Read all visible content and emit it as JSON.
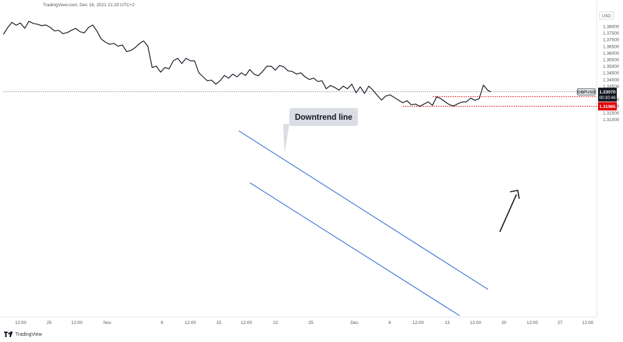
{
  "header": {
    "source_line": "TradingView.com, Dec 16, 2021 21:29 UTC+2"
  },
  "footer": {
    "brand": "TradingView",
    "logo_icon": "tradingview-logo-icon"
  },
  "chart_data": {
    "type": "line",
    "currency": "USD",
    "symbol": "GBPUSD",
    "ylim": [
      1.3055,
      1.3855
    ],
    "y_ticks": [
      "1.38000",
      "1.37500",
      "1.37000",
      "1.36500",
      "1.36000",
      "1.35500",
      "1.35000",
      "1.34500",
      "1.34000",
      "1.33500",
      "1.32500",
      "1.32000",
      "1.31500",
      "1.31000"
    ],
    "x_tick_labels": [
      "12:00",
      "25",
      "12:00",
      "Nov",
      "8",
      "12:00",
      "15",
      "12:00",
      "22",
      "25",
      "Dec",
      "6",
      "12:00",
      "13",
      "12:00",
      "20",
      "12:00",
      "27",
      "12:00"
    ],
    "last_price": {
      "value": 1.3307,
      "label": "1.33070",
      "countdown": "00:30:48",
      "color": "#131722"
    },
    "levels": [
      {
        "value": 1.32705,
        "label": "1.32705",
        "color": "#e00000"
      },
      {
        "value": 1.31985,
        "label": "1.31985",
        "color": "#e00000"
      }
    ],
    "annotation": {
      "text": "Downtrend line"
    },
    "channel_color": "#3f77d8",
    "price_series": [
      [
        0,
        1.374
      ],
      [
        4,
        1.379
      ],
      [
        8,
        1.383
      ],
      [
        12,
        1.3808
      ],
      [
        16,
        1.3825
      ],
      [
        20,
        1.3785
      ],
      [
        24,
        1.3838
      ],
      [
        28,
        1.3822
      ],
      [
        32,
        1.3815
      ],
      [
        36,
        1.3805
      ],
      [
        40,
        1.381
      ],
      [
        44,
        1.3792
      ],
      [
        48,
        1.3765
      ],
      [
        52,
        1.377
      ],
      [
        56,
        1.3745
      ],
      [
        60,
        1.3752
      ],
      [
        64,
        1.377
      ],
      [
        68,
        1.3785
      ],
      [
        72,
        1.376
      ],
      [
        76,
        1.375
      ],
      [
        80,
        1.379
      ],
      [
        84,
        1.381
      ],
      [
        88,
        1.3765
      ],
      [
        92,
        1.3705
      ],
      [
        96,
        1.368
      ],
      [
        100,
        1.3665
      ],
      [
        104,
        1.3672
      ],
      [
        108,
        1.365
      ],
      [
        112,
        1.366
      ],
      [
        116,
        1.361
      ],
      [
        120,
        1.3618
      ],
      [
        124,
        1.364
      ],
      [
        128,
        1.367
      ],
      [
        132,
        1.369
      ],
      [
        136,
        1.365
      ],
      [
        140,
        1.349
      ],
      [
        144,
        1.35
      ],
      [
        148,
        1.3455
      ],
      [
        152,
        1.349
      ],
      [
        156,
        1.348
      ],
      [
        160,
        1.354
      ],
      [
        164,
        1.356
      ],
      [
        168,
        1.352
      ],
      [
        172,
        1.356
      ],
      [
        176,
        1.354
      ],
      [
        180,
        1.354
      ],
      [
        184,
        1.345
      ],
      [
        188,
        1.342
      ],
      [
        192,
        1.339
      ],
      [
        196,
        1.3395
      ],
      [
        200,
        1.3365
      ],
      [
        204,
        1.339
      ],
      [
        208,
        1.343
      ],
      [
        212,
        1.341
      ],
      [
        216,
        1.344
      ],
      [
        220,
        1.342
      ],
      [
        224,
        1.345
      ],
      [
        228,
        1.343
      ],
      [
        232,
        1.3475
      ],
      [
        236,
        1.344
      ],
      [
        240,
        1.3428
      ],
      [
        244,
        1.346
      ],
      [
        248,
        1.35
      ],
      [
        252,
        1.35
      ],
      [
        256,
        1.347
      ],
      [
        260,
        1.3505
      ],
      [
        264,
        1.3495
      ],
      [
        268,
        1.3465
      ],
      [
        272,
        1.346
      ],
      [
        276,
        1.344
      ],
      [
        280,
        1.345
      ],
      [
        284,
        1.342
      ],
      [
        288,
        1.34
      ],
      [
        292,
        1.341
      ],
      [
        296,
        1.3385
      ],
      [
        300,
        1.339
      ],
      [
        304,
        1.333
      ],
      [
        308,
        1.3355
      ],
      [
        312,
        1.334
      ],
      [
        316,
        1.332
      ],
      [
        320,
        1.335
      ],
      [
        324,
        1.333
      ],
      [
        328,
        1.3365
      ],
      [
        332,
        1.33
      ],
      [
        336,
        1.3345
      ],
      [
        340,
        1.3295
      ],
      [
        344,
        1.335
      ],
      [
        348,
        1.332
      ],
      [
        352,
        1.328
      ],
      [
        356,
        1.3245
      ],
      [
        360,
        1.3275
      ],
      [
        364,
        1.3285
      ],
      [
        368,
        1.3265
      ],
      [
        372,
        1.3245
      ],
      [
        376,
        1.3225
      ],
      [
        380,
        1.324
      ],
      [
        384,
        1.321
      ],
      [
        388,
        1.3215
      ],
      [
        392,
        1.3198
      ],
      [
        396,
        1.3215
      ],
      [
        400,
        1.3232
      ],
      [
        404,
        1.3205
      ],
      [
        408,
        1.327
      ],
      [
        412,
        1.3255
      ],
      [
        416,
        1.3232
      ],
      [
        420,
        1.321
      ],
      [
        424,
        1.32
      ],
      [
        428,
        1.3218
      ],
      [
        432,
        1.323
      ],
      [
        436,
        1.3232
      ],
      [
        440,
        1.326
      ],
      [
        444,
        1.3244
      ],
      [
        448,
        1.3255
      ],
      [
        452,
        1.3358
      ],
      [
        456,
        1.332
      ],
      [
        459,
        1.3307
      ]
    ]
  }
}
